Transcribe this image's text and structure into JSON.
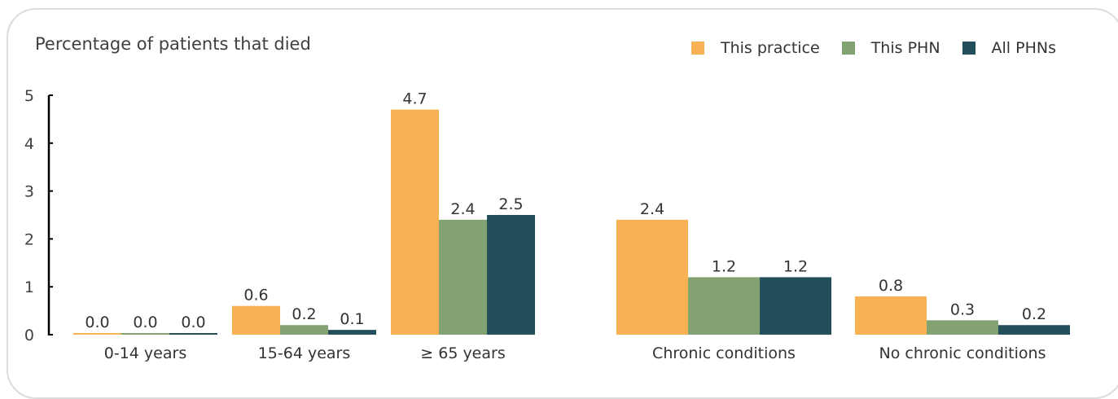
{
  "chart_data": {
    "type": "bar",
    "title": "Percentage of patients that died",
    "xlabel": "",
    "ylabel": "",
    "ylim": [
      0,
      5
    ],
    "yticks": [
      0,
      1,
      2,
      3,
      4,
      5
    ],
    "categories": [
      "0-14 years",
      "15-64 years",
      "≥ 65 years",
      "Chronic conditions",
      "No chronic conditions"
    ],
    "series": [
      {
        "name": "This practice",
        "color": "#f9b253",
        "values": [
          0.0,
          0.6,
          4.7,
          2.4,
          0.8
        ]
      },
      {
        "name": "This PHN",
        "color": "#82a371",
        "values": [
          0.0,
          0.2,
          2.4,
          1.2,
          0.3
        ]
      },
      {
        "name": "All PHNs",
        "color": "#234f5a",
        "values": [
          0.0,
          0.1,
          2.5,
          1.2,
          0.2
        ]
      }
    ],
    "data_labels": [
      [
        "0.0",
        "0.6",
        "4.7",
        "2.4",
        "0.8"
      ],
      [
        "0.0",
        "0.2",
        "2.4",
        "1.2",
        "0.3"
      ],
      [
        "0.0",
        "0.1",
        "2.5",
        "1.2",
        "0.2"
      ]
    ],
    "legend_position": "top-right",
    "grid": false
  }
}
